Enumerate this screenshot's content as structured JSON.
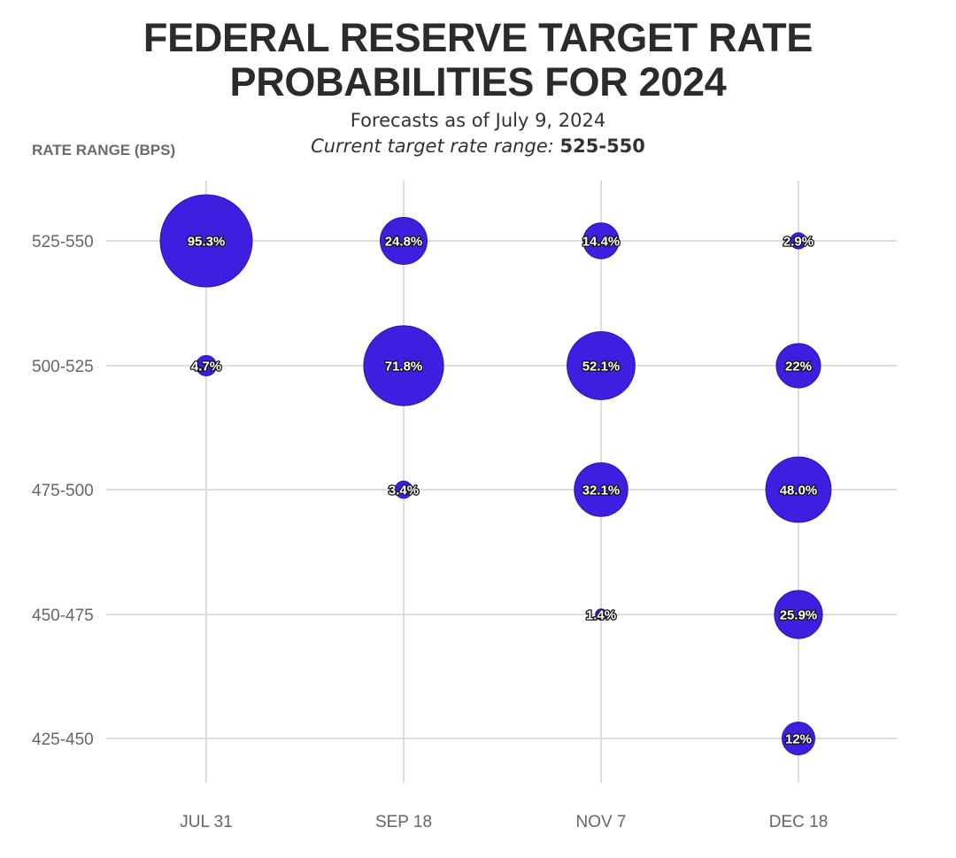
{
  "chart_data": {
    "type": "scatter",
    "title": "FEDERAL RESERVE TARGET RATE PROBABILITIES FOR 2024",
    "subtitle": "Forecasts as of July 9, 2024",
    "subtitle2": {
      "prefix": "Current target rate range:",
      "value": "525-550"
    },
    "ylabel": "RATE RANGE (BPS)",
    "xlabel": "",
    "categories": [
      "JUL 31",
      "SEP 18",
      "NOV 7",
      "DEC 18"
    ],
    "rate_ranges": [
      "525-550",
      "500-525",
      "475-500",
      "450-475",
      "425-450"
    ],
    "bubble_color": "#3d1fe0",
    "grid": true,
    "points": [
      {
        "date": "JUL 31",
        "range": "525-550",
        "value": 95.3,
        "label": "95.3%"
      },
      {
        "date": "JUL 31",
        "range": "500-525",
        "value": 4.7,
        "label": "4.7%"
      },
      {
        "date": "SEP 18",
        "range": "525-550",
        "value": 24.8,
        "label": "24.8%"
      },
      {
        "date": "SEP 18",
        "range": "500-525",
        "value": 71.8,
        "label": "71.8%"
      },
      {
        "date": "SEP 18",
        "range": "475-500",
        "value": 3.4,
        "label": "3.4%"
      },
      {
        "date": "NOV 7",
        "range": "525-550",
        "value": 14.4,
        "label": "14.4%"
      },
      {
        "date": "NOV 7",
        "range": "500-525",
        "value": 52.1,
        "label": "52.1%"
      },
      {
        "date": "NOV 7",
        "range": "475-500",
        "value": 32.1,
        "label": "32.1%"
      },
      {
        "date": "NOV 7",
        "range": "450-475",
        "value": 1.4,
        "label": "1.4%"
      },
      {
        "date": "DEC 18",
        "range": "525-550",
        "value": 2.9,
        "label": "2.9%"
      },
      {
        "date": "DEC 18",
        "range": "500-525",
        "value": 22,
        "label": "22%"
      },
      {
        "date": "DEC 18",
        "range": "475-500",
        "value": 48.0,
        "label": "48.0%"
      },
      {
        "date": "DEC 18",
        "range": "450-475",
        "value": 25.9,
        "label": "25.9%"
      },
      {
        "date": "DEC 18",
        "range": "425-450",
        "value": 12,
        "label": "12%"
      }
    ]
  }
}
